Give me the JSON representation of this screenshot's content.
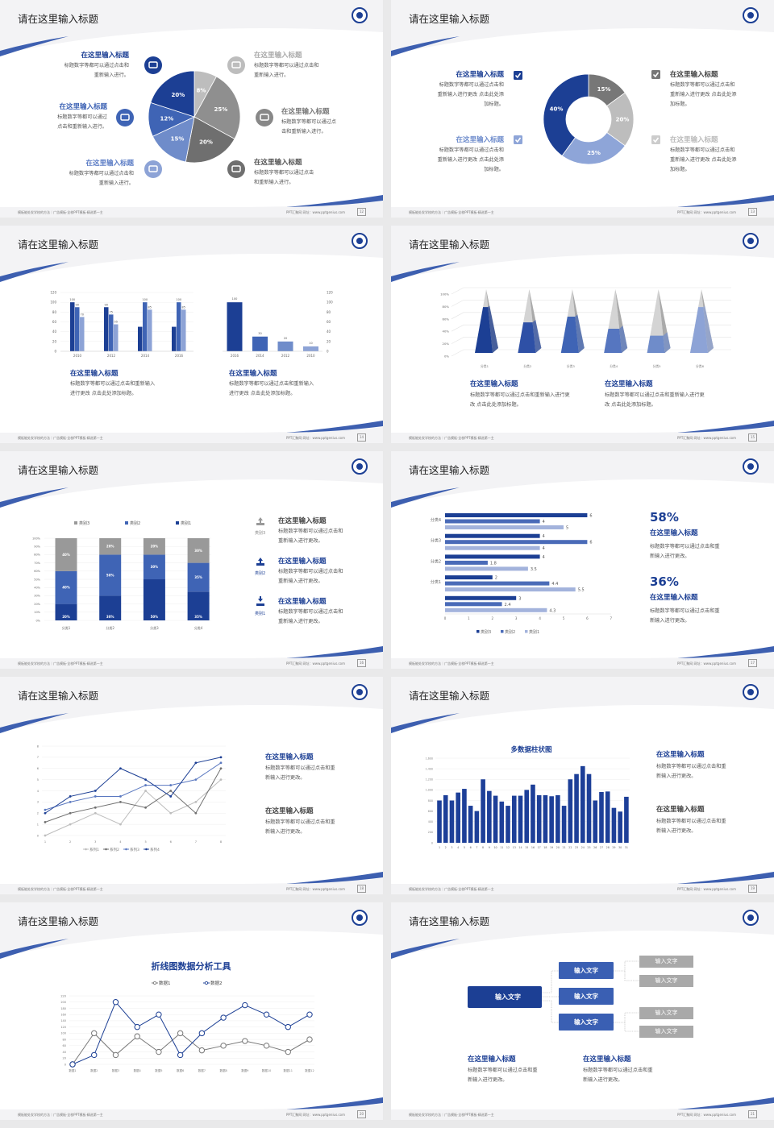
{
  "common": {
    "footer_left": "模板能处发学校的方法｜广告模板·全校PPT模板·精选第一主",
    "footer_right": "PPT汇聚网  网址：www.pptgenius.com"
  },
  "colors": {
    "navy": "#1c3f94",
    "mid": "#3f64b5",
    "light": "#8da3d6",
    "gray": "#888888",
    "lightgray": "#bdbdbd",
    "darkgray": "#6f6f6f"
  },
  "slides": [
    {
      "page": "12",
      "title": "请在这里输入标题",
      "items": [
        {
          "icon": "monitor-icon",
          "title": "在这里输入标题",
          "desc": "标题数字等都可以通过点击和\n重新输入进行。"
        },
        {
          "icon": "car-icon",
          "title": "在这里输入标题",
          "desc": "标题数字等都可以通过\n点击和重新输入进行。"
        },
        {
          "icon": "book-icon",
          "title": "在这里输入标题",
          "desc": "标题数字等都可以通过点击和\n重新输入进行。"
        },
        {
          "icon": "phone-icon",
          "title": "在这里输入标题",
          "desc": "标题数字等都可以通过点击和\n重新输入进行。"
        },
        {
          "icon": "binoculars-icon",
          "title": "在这里输入标题",
          "desc": "标题数字等都可以通过点\n击和重新输入进行。"
        },
        {
          "icon": "bicycle-icon",
          "title": "在这里输入标题",
          "desc": "标题数字等都可以通过点击\n和重新输入进行。"
        }
      ]
    },
    {
      "page": "13",
      "title": "请在这里输入标题",
      "items": [
        {
          "icon": "checkbox-icon",
          "title": "在这里输入标题",
          "desc": "标题数字等都可以通过点击和\n重新输入进行更改 点击此处添\n加标题。"
        },
        {
          "icon": "checkbox-icon",
          "title": "在这里输入标题",
          "desc": "标题数字等都可以通过点击和\n重新输入进行更改 点击此处添\n加标题。"
        },
        {
          "icon": "checkbox-icon",
          "title": "在这里输入标题",
          "desc": "标题数字等都可以通过点击和\n重新输入进行更改 点击此处添\n加标题。"
        },
        {
          "icon": "checkbox-icon",
          "title": "在这里输入标题",
          "desc": "标题数字等都可以通过点击和\n重新输入进行更改 点击此处添\n加标题。"
        }
      ]
    },
    {
      "page": "14",
      "title": "请在这里输入标题",
      "items": [
        {
          "title": "在这里输入标题",
          "desc": "标题数字等都可以通过点击和重新输入\n进行更改 点击此处添加标题。"
        },
        {
          "title": "在这里输入标题",
          "desc": "标题数字等都可以通过点击和重新输入\n进行更改 点击此处添加标题。"
        }
      ]
    },
    {
      "page": "15",
      "title": "请在这里输入标题",
      "items": [
        {
          "title": "在这里输入标题",
          "desc": "标题数字等都可以通过点击和重新输入进行更\n改 点击此处添加标题。"
        },
        {
          "title": "在这里输入标题",
          "desc": "标题数字等都可以通过点击和重新输入进行更\n改 点击此处添加标题。"
        }
      ]
    },
    {
      "page": "16",
      "title": "请在这里输入标题",
      "items": [
        {
          "icon": "bar-chart-icon",
          "tag": "类别3",
          "title": "在这里输入标题",
          "desc": "标题数字等都可以通过点击和\n重新输入进行更改。"
        },
        {
          "icon": "upload-icon",
          "tag": "类别2",
          "title": "在这里输入标题",
          "desc": "标题数字等都可以通过点击和\n重新输入进行更改。"
        },
        {
          "icon": "download-icon",
          "tag": "类别1",
          "title": "在这里输入标题",
          "desc": "标题数字等都可以通过点击和\n重新输入进行更改。"
        }
      ]
    },
    {
      "page": "17",
      "title": "请在这里输入标题",
      "items": [
        {
          "value": "58%",
          "title": "在这里输入标题",
          "desc": "标题数字等都可以通过点击和重\n新输入进行更改。"
        },
        {
          "value": "36%",
          "title": "在这里输入标题",
          "desc": "标题数字等都可以通过点击和重\n新输入进行更改。"
        }
      ]
    },
    {
      "page": "18",
      "title": "请在这里输入标题",
      "items": [
        {
          "title": "在这里输入标题",
          "desc": "标题数字等都可以通过点击和重\n新输入进行更改。"
        },
        {
          "title": "在这里输入标题",
          "desc": "标题数字等都可以通过点击和重\n新输入进行更改。"
        }
      ]
    },
    {
      "page": "19",
      "title": "请在这里输入标题",
      "items": [
        {
          "title": "在这里输入标题",
          "desc": "标题数字等都可以通过点击和重\n新输入进行更改。"
        },
        {
          "title": "在这里输入标题",
          "desc": "标题数字等都可以通过点击和重\n新输入进行更改。"
        }
      ]
    },
    {
      "page": "20",
      "title": "请在这里输入标题",
      "items": []
    },
    {
      "page": "21",
      "title": "请在这里输入标题",
      "diagram": {
        "root": "输入文字",
        "mids": [
          "输入文字",
          "输入文字",
          "输入文字"
        ],
        "leaves": [
          "输入文字",
          "输入文字",
          "输入文字",
          "输入文字"
        ]
      },
      "items": [
        {
          "title": "在这里输入标题",
          "desc": "标题数字等都可以通过点击和重\n新输入进行更改。"
        },
        {
          "title": "在这里输入标题",
          "desc": "标题数字等都可以通过点击和重\n新输入进行更改。"
        }
      ]
    }
  ],
  "chart_data": [
    {
      "type": "pie",
      "values": [
        8,
        25,
        20,
        15,
        12,
        20
      ],
      "labels": [
        "8%",
        "25%",
        "20%",
        "15%",
        "12%",
        "20%"
      ],
      "colors": [
        "#bdbdbd",
        "#8f8f8f",
        "#6f6f6f",
        "#6f8cca",
        "#3f64b5",
        "#1c3f94"
      ]
    },
    {
      "type": "pie",
      "donut": true,
      "values": [
        15,
        20,
        25,
        40
      ],
      "labels": [
        "15%",
        "20%",
        "25%",
        "40%"
      ],
      "colors": [
        "#777777",
        "#bdbdbd",
        "#8ea5d8",
        "#1c3f94"
      ]
    },
    {
      "type": "bar",
      "categories": [
        "2010",
        "2012",
        "2014",
        "2016"
      ],
      "series": [
        {
          "values": [
            100,
            90,
            50,
            50
          ],
          "labels": [
            "100",
            "90",
            "",
            ""
          ]
        },
        {
          "values": [
            90,
            75,
            100,
            100
          ],
          "labels": [
            "90",
            "75",
            "100",
            "100"
          ]
        },
        {
          "values": [
            70,
            55,
            85,
            85
          ],
          "labels": [
            "70",
            "55",
            "85",
            "85"
          ]
        }
      ],
      "ylim": [
        0,
        120
      ],
      "yticks": [
        "0",
        "20",
        "40",
        "60",
        "80",
        "100",
        "120"
      ]
    },
    {
      "type": "bar",
      "categories": [
        "2016",
        "2014",
        "2012",
        "2010"
      ],
      "values": [
        100,
        30,
        20,
        10
      ],
      "labels": [
        "100",
        "30",
        "20",
        "10"
      ],
      "ylim": [
        0,
        120
      ],
      "yticks": [
        "0",
        "20",
        "40",
        "60",
        "80",
        "100",
        "120"
      ],
      "axis": "right"
    },
    {
      "type": "bar",
      "style": "pyramid",
      "categories": [
        "分类1",
        "分类2",
        "分类3",
        "分类4",
        "分类5",
        "分类6"
      ],
      "values": [
        72,
        48,
        57,
        38,
        27,
        72
      ],
      "ylim": [
        0,
        100
      ],
      "yticks": [
        "0%",
        "20%",
        "40%",
        "60%",
        "80%",
        "100%"
      ]
    },
    {
      "type": "bar",
      "stacked": true,
      "categories": [
        "分类1",
        "分类2",
        "分类3",
        "分类4"
      ],
      "series": [
        {
          "name": "类别1",
          "values": [
            20,
            30,
            50,
            35
          ]
        },
        {
          "name": "类别2",
          "values": [
            40,
            50,
            30,
            35
          ]
        },
        {
          "name": "类别3",
          "values": [
            40,
            20,
            20,
            30
          ]
        }
      ],
      "legend_order": [
        "类别3",
        "类别2",
        "类别1"
      ],
      "legend": "top",
      "ylim": [
        0,
        100
      ],
      "yticks": [
        "0%",
        "10%",
        "20%",
        "30%",
        "40%",
        "50%",
        "60%",
        "70%",
        "80%",
        "90%",
        "100%"
      ]
    },
    {
      "type": "bar",
      "orientation": "horizontal",
      "categories": [
        "分类4",
        "分类3",
        "分类2",
        "分类1",
        ""
      ],
      "series": [
        {
          "name": "类别3",
          "values": [
            6,
            4,
            4,
            2,
            3
          ]
        },
        {
          "name": "类别2",
          "values": [
            4,
            6,
            1.8,
            4.4,
            2.4
          ]
        },
        {
          "name": "类别1",
          "values": [
            5,
            4,
            3.5,
            5.5,
            4.3
          ]
        }
      ],
      "xlim": [
        0,
        7
      ],
      "xticks": [
        "0",
        "1",
        "2",
        "3",
        "4",
        "5",
        "6",
        "7"
      ],
      "legend": "bottom"
    },
    {
      "type": "line",
      "x": [
        "1",
        "2",
        "3",
        "4",
        "5",
        "6",
        "7",
        "8"
      ],
      "series": [
        {
          "name": "系列1",
          "values": [
            0,
            1,
            2,
            1,
            4,
            2,
            3,
            5
          ]
        },
        {
          "name": "系列2",
          "values": [
            1.2,
            2,
            2.5,
            3,
            2.5,
            4,
            2,
            6
          ]
        },
        {
          "name": "系列3",
          "values": [
            2.3,
            3,
            3.5,
            3.5,
            4.5,
            4.5,
            5,
            6.5
          ]
        },
        {
          "name": "系列4",
          "values": [
            2,
            3.5,
            4,
            6,
            5,
            3.5,
            6.5,
            7
          ]
        }
      ],
      "ylim": [
        0,
        8
      ],
      "yticks": [
        "0",
        "1",
        "2",
        "3",
        "4",
        "5",
        "6",
        "7",
        "8"
      ],
      "legend": "bottom"
    },
    {
      "type": "bar",
      "title": "多数据柱状图",
      "categories": [
        "1",
        "2",
        "3",
        "4",
        "5",
        "6",
        "7",
        "8",
        "9",
        "10",
        "11",
        "12",
        "13",
        "14",
        "15",
        "16",
        "17",
        "18",
        "19",
        "20",
        "21",
        "22",
        "23",
        "24",
        "25",
        "26",
        "27",
        "28",
        "29",
        "30",
        "31"
      ],
      "values": [
        800,
        900,
        800,
        950,
        1020,
        700,
        600,
        1200,
        980,
        890,
        780,
        700,
        890,
        890,
        1000,
        1100,
        900,
        900,
        880,
        900,
        700,
        1200,
        1300,
        1450,
        1300,
        800,
        960,
        970,
        660,
        590,
        870
      ],
      "ylim": [
        0,
        1600
      ],
      "yticks": [
        "0",
        "200",
        "400",
        "600",
        "800",
        "1,000",
        "1,200",
        "1,400",
        "1,600"
      ]
    },
    {
      "type": "line",
      "title": "折线图数据分析工具",
      "x": [
        "数据1",
        "数据2",
        "数据3",
        "数据4",
        "数据5",
        "数据6",
        "数据7",
        "数据8",
        "数据9",
        "数据10",
        "数据11",
        "数据12"
      ],
      "series": [
        {
          "name": "数据1",
          "values": [
            0,
            100,
            30,
            90,
            40,
            100,
            45,
            60,
            75,
            60,
            40,
            80
          ]
        },
        {
          "name": "数据2",
          "values": [
            0,
            30,
            200,
            120,
            160,
            30,
            100,
            150,
            190,
            160,
            120,
            160
          ]
        }
      ],
      "ylim": [
        0,
        220
      ],
      "yticks": [
        "0",
        "20",
        "40",
        "60",
        "80",
        "100",
        "120",
        "140",
        "160",
        "180",
        "200",
        "220"
      ],
      "legend": "top"
    }
  ]
}
